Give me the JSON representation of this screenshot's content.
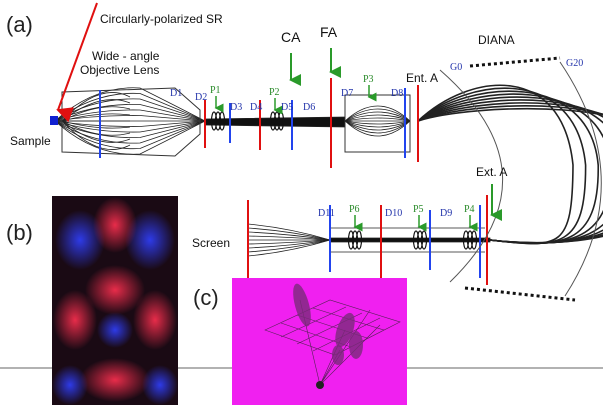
{
  "panel_a": {
    "label": "(a)",
    "source": "Circularly-polarized SR",
    "lens_line1": "Wide - angle",
    "lens_line2": "Objective Lens",
    "sample": "Sample",
    "upper_labels": [
      "D1",
      "D2",
      "P1",
      "D3",
      "D4",
      "P2",
      "D5",
      "D6",
      "D7",
      "P3",
      "D8"
    ],
    "ca": "CA",
    "fa": "FA",
    "entrance": "Ent. A",
    "analyzer": "DIANA",
    "g0": "G0",
    "g20": "G20",
    "screen": "Screen",
    "lower_labels": [
      "D11",
      "P6",
      "D10",
      "P5",
      "D9",
      "P4"
    ],
    "exit": "Ext. A"
  },
  "panel_b": {
    "label": "(b)"
  },
  "panel_c": {
    "label": "(c)"
  }
}
